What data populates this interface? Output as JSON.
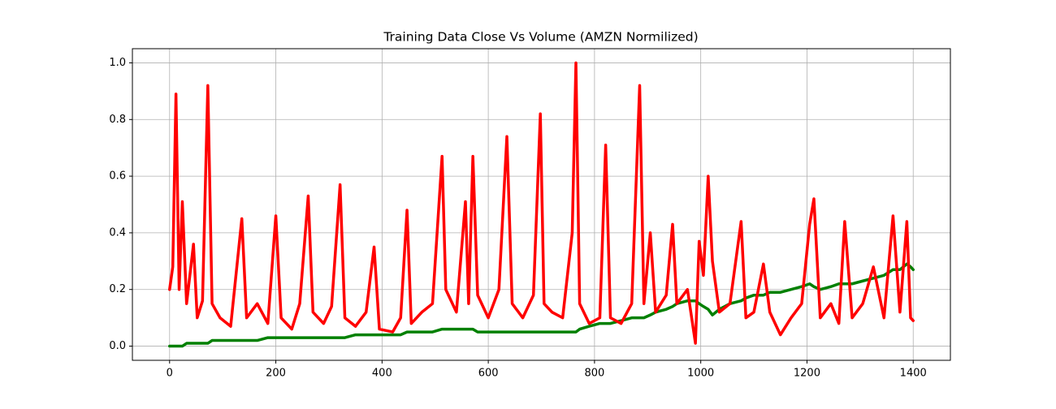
{
  "chart_data": {
    "type": "line",
    "title": "Training Data Close Vs Volume (AMZN Normilized)",
    "x": [
      0,
      6,
      12,
      18,
      24,
      32,
      45,
      52,
      62,
      72,
      80,
      95,
      115,
      136,
      145,
      165,
      185,
      200,
      210,
      230,
      245,
      261,
      270,
      290,
      305,
      321,
      330,
      350,
      370,
      385,
      395,
      420,
      435,
      447,
      455,
      475,
      495,
      513,
      520,
      540,
      557,
      563,
      571,
      580,
      600,
      620,
      635,
      645,
      665,
      685,
      698,
      705,
      720,
      740,
      758,
      765,
      772,
      790,
      810,
      821,
      830,
      850,
      870,
      885,
      893,
      905,
      915,
      935,
      947,
      955,
      975,
      990,
      997,
      1005,
      1014,
      1022,
      1035,
      1055,
      1076,
      1085,
      1100,
      1118,
      1130,
      1150,
      1170,
      1190,
      1205,
      1213,
      1225,
      1245,
      1260,
      1271,
      1285,
      1305,
      1325,
      1345,
      1362,
      1375,
      1388,
      1395,
      1400
    ],
    "series": [
      {
        "color": "#008000",
        "values": [
          0.0,
          0.0,
          0.0,
          0.0,
          0.0,
          0.01,
          0.01,
          0.01,
          0.01,
          0.01,
          0.02,
          0.02,
          0.02,
          0.02,
          0.02,
          0.02,
          0.03,
          0.03,
          0.03,
          0.03,
          0.03,
          0.03,
          0.03,
          0.03,
          0.03,
          0.03,
          0.03,
          0.04,
          0.04,
          0.04,
          0.04,
          0.04,
          0.04,
          0.05,
          0.05,
          0.05,
          0.05,
          0.06,
          0.06,
          0.06,
          0.06,
          0.06,
          0.06,
          0.05,
          0.05,
          0.05,
          0.05,
          0.05,
          0.05,
          0.05,
          0.05,
          0.05,
          0.05,
          0.05,
          0.05,
          0.05,
          0.06,
          0.07,
          0.08,
          0.08,
          0.08,
          0.09,
          0.1,
          0.1,
          0.1,
          0.11,
          0.12,
          0.13,
          0.14,
          0.15,
          0.16,
          0.16,
          0.15,
          0.14,
          0.13,
          0.11,
          0.13,
          0.15,
          0.16,
          0.17,
          0.18,
          0.18,
          0.19,
          0.19,
          0.2,
          0.21,
          0.22,
          0.21,
          0.2,
          0.21,
          0.22,
          0.22,
          0.22,
          0.23,
          0.24,
          0.25,
          0.27,
          0.27,
          0.29,
          0.28,
          0.27
        ]
      },
      {
        "color": "#ff0000",
        "values": [
          0.2,
          0.28,
          0.89,
          0.2,
          0.51,
          0.15,
          0.36,
          0.1,
          0.16,
          0.92,
          0.15,
          0.1,
          0.07,
          0.45,
          0.1,
          0.15,
          0.08,
          0.46,
          0.1,
          0.06,
          0.15,
          0.53,
          0.12,
          0.08,
          0.14,
          0.57,
          0.1,
          0.07,
          0.12,
          0.35,
          0.06,
          0.05,
          0.1,
          0.48,
          0.08,
          0.12,
          0.15,
          0.67,
          0.2,
          0.12,
          0.51,
          0.15,
          0.67,
          0.18,
          0.1,
          0.2,
          0.74,
          0.15,
          0.1,
          0.18,
          0.82,
          0.15,
          0.12,
          0.1,
          0.4,
          1.0,
          0.15,
          0.08,
          0.1,
          0.71,
          0.1,
          0.08,
          0.15,
          0.92,
          0.15,
          0.4,
          0.12,
          0.18,
          0.43,
          0.15,
          0.2,
          0.01,
          0.37,
          0.25,
          0.6,
          0.3,
          0.12,
          0.15,
          0.44,
          0.1,
          0.12,
          0.29,
          0.12,
          0.04,
          0.1,
          0.15,
          0.43,
          0.52,
          0.1,
          0.15,
          0.08,
          0.44,
          0.1,
          0.15,
          0.28,
          0.1,
          0.46,
          0.12,
          0.44,
          0.1,
          0.09
        ]
      }
    ],
    "xlim": [
      -70,
      1470
    ],
    "ylim": [
      -0.05,
      1.05
    ],
    "xticks": [
      0,
      200,
      400,
      600,
      800,
      1000,
      1200,
      1400
    ],
    "yticks": [
      {
        "value": 0,
        "label": "0.0"
      },
      0.2,
      0.4,
      0.6,
      0.8,
      {
        "value": 1,
        "label": "1.0"
      }
    ],
    "grid": true
  }
}
